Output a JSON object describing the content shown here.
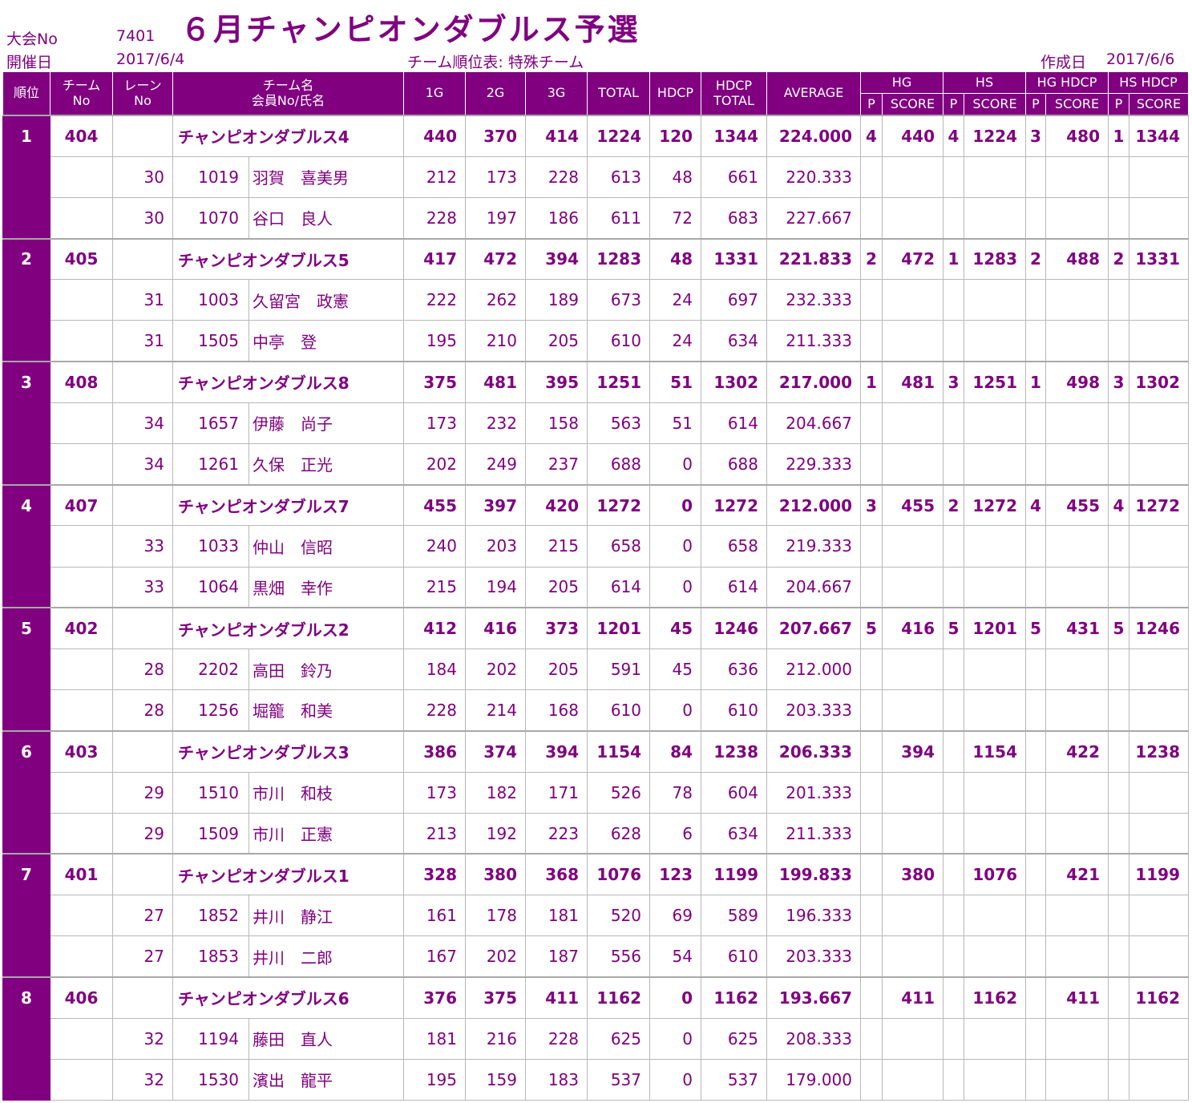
{
  "header": {
    "tournament_no_label": "大会No",
    "tournament_no": "7401",
    "title": "６月チャンピオンダブルス予選",
    "date_label": "開催日",
    "date": "2017/6/4",
    "subtitle": "チーム順位表: 特殊チーム",
    "created_label": "作成日",
    "created_date": "2017/6/6"
  },
  "columns": {
    "rank": "順位",
    "team_no_1": "チーム",
    "team_no_2": "No",
    "lane_1": "レーン",
    "lane_2": "No",
    "name_1": "チーム名",
    "name_2": "会員No/氏名",
    "g1": "1G",
    "g2": "2G",
    "g3": "3G",
    "total": "TOTAL",
    "hdcp": "HDCP",
    "hdcp_total_1": "HDCP",
    "hdcp_total_2": "TOTAL",
    "average": "AVERAGE",
    "hg": "HG",
    "hs": "HS",
    "hg_hdcp": "HG HDCP",
    "hs_hdcp": "HS HDCP",
    "p": "P",
    "score": "SCORE"
  },
  "teams": [
    {
      "rank": "1",
      "team_no": "404",
      "name": "チャンピオンダブルス4",
      "g1": "440",
      "g2": "370",
      "g3": "414",
      "total": "1224",
      "hdcp": "120",
      "hdcp_total": "1344",
      "average": "224.000",
      "hg_p": "4",
      "hg_score": "440",
      "hs_p": "4",
      "hs_score": "1224",
      "hgh_p": "3",
      "hgh_score": "480",
      "hsh_p": "1",
      "hsh_score": "1344",
      "members": [
        {
          "lane": "30",
          "member_no": "1019",
          "name": "羽賀　喜美男",
          "g1": "212",
          "g2": "173",
          "g3": "228",
          "total": "613",
          "hdcp": "48",
          "hdcp_total": "661",
          "average": "220.333"
        },
        {
          "lane": "30",
          "member_no": "1070",
          "name": "谷口　良人",
          "g1": "228",
          "g2": "197",
          "g3": "186",
          "total": "611",
          "hdcp": "72",
          "hdcp_total": "683",
          "average": "227.667"
        }
      ]
    },
    {
      "rank": "2",
      "team_no": "405",
      "name": "チャンピオンダブルス5",
      "g1": "417",
      "g2": "472",
      "g3": "394",
      "total": "1283",
      "hdcp": "48",
      "hdcp_total": "1331",
      "average": "221.833",
      "hg_p": "2",
      "hg_score": "472",
      "hs_p": "1",
      "hs_score": "1283",
      "hgh_p": "2",
      "hgh_score": "488",
      "hsh_p": "2",
      "hsh_score": "1331",
      "members": [
        {
          "lane": "31",
          "member_no": "1003",
          "name": "久留宮　政憲",
          "g1": "222",
          "g2": "262",
          "g3": "189",
          "total": "673",
          "hdcp": "24",
          "hdcp_total": "697",
          "average": "232.333"
        },
        {
          "lane": "31",
          "member_no": "1505",
          "name": "中亭　登",
          "g1": "195",
          "g2": "210",
          "g3": "205",
          "total": "610",
          "hdcp": "24",
          "hdcp_total": "634",
          "average": "211.333"
        }
      ]
    },
    {
      "rank": "3",
      "team_no": "408",
      "name": "チャンピオンダブルス8",
      "g1": "375",
      "g2": "481",
      "g3": "395",
      "total": "1251",
      "hdcp": "51",
      "hdcp_total": "1302",
      "average": "217.000",
      "hg_p": "1",
      "hg_score": "481",
      "hs_p": "3",
      "hs_score": "1251",
      "hgh_p": "1",
      "hgh_score": "498",
      "hsh_p": "3",
      "hsh_score": "1302",
      "members": [
        {
          "lane": "34",
          "member_no": "1657",
          "name": "伊藤　尚子",
          "g1": "173",
          "g2": "232",
          "g3": "158",
          "total": "563",
          "hdcp": "51",
          "hdcp_total": "614",
          "average": "204.667"
        },
        {
          "lane": "34",
          "member_no": "1261",
          "name": "久保　正光",
          "g1": "202",
          "g2": "249",
          "g3": "237",
          "total": "688",
          "hdcp": "0",
          "hdcp_total": "688",
          "average": "229.333"
        }
      ]
    },
    {
      "rank": "4",
      "team_no": "407",
      "name": "チャンピオンダブルス7",
      "g1": "455",
      "g2": "397",
      "g3": "420",
      "total": "1272",
      "hdcp": "0",
      "hdcp_total": "1272",
      "average": "212.000",
      "hg_p": "3",
      "hg_score": "455",
      "hs_p": "2",
      "hs_score": "1272",
      "hgh_p": "4",
      "hgh_score": "455",
      "hsh_p": "4",
      "hsh_score": "1272",
      "members": [
        {
          "lane": "33",
          "member_no": "1033",
          "name": "仲山　信昭",
          "g1": "240",
          "g2": "203",
          "g3": "215",
          "total": "658",
          "hdcp": "0",
          "hdcp_total": "658",
          "average": "219.333"
        },
        {
          "lane": "33",
          "member_no": "1064",
          "name": "黒畑　幸作",
          "g1": "215",
          "g2": "194",
          "g3": "205",
          "total": "614",
          "hdcp": "0",
          "hdcp_total": "614",
          "average": "204.667"
        }
      ]
    },
    {
      "rank": "5",
      "team_no": "402",
      "name": "チャンピオンダブルス2",
      "g1": "412",
      "g2": "416",
      "g3": "373",
      "total": "1201",
      "hdcp": "45",
      "hdcp_total": "1246",
      "average": "207.667",
      "hg_p": "5",
      "hg_score": "416",
      "hs_p": "5",
      "hs_score": "1201",
      "hgh_p": "5",
      "hgh_score": "431",
      "hsh_p": "5",
      "hsh_score": "1246",
      "members": [
        {
          "lane": "28",
          "member_no": "2202",
          "name": "高田　鈴乃",
          "g1": "184",
          "g2": "202",
          "g3": "205",
          "total": "591",
          "hdcp": "45",
          "hdcp_total": "636",
          "average": "212.000"
        },
        {
          "lane": "28",
          "member_no": "1256",
          "name": "堀籠　和美",
          "g1": "228",
          "g2": "214",
          "g3": "168",
          "total": "610",
          "hdcp": "0",
          "hdcp_total": "610",
          "average": "203.333"
        }
      ]
    },
    {
      "rank": "6",
      "team_no": "403",
      "name": "チャンピオンダブルス3",
      "g1": "386",
      "g2": "374",
      "g3": "394",
      "total": "1154",
      "hdcp": "84",
      "hdcp_total": "1238",
      "average": "206.333",
      "hg_p": "",
      "hg_score": "394",
      "hs_p": "",
      "hs_score": "1154",
      "hgh_p": "",
      "hgh_score": "422",
      "hsh_p": "",
      "hsh_score": "1238",
      "members": [
        {
          "lane": "29",
          "member_no": "1510",
          "name": "市川　和枝",
          "g1": "173",
          "g2": "182",
          "g3": "171",
          "total": "526",
          "hdcp": "78",
          "hdcp_total": "604",
          "average": "201.333"
        },
        {
          "lane": "29",
          "member_no": "1509",
          "name": "市川　正憲",
          "g1": "213",
          "g2": "192",
          "g3": "223",
          "total": "628",
          "hdcp": "6",
          "hdcp_total": "634",
          "average": "211.333"
        }
      ]
    },
    {
      "rank": "7",
      "team_no": "401",
      "name": "チャンピオンダブルス1",
      "g1": "328",
      "g2": "380",
      "g3": "368",
      "total": "1076",
      "hdcp": "123",
      "hdcp_total": "1199",
      "average": "199.833",
      "hg_p": "",
      "hg_score": "380",
      "hs_p": "",
      "hs_score": "1076",
      "hgh_p": "",
      "hgh_score": "421",
      "hsh_p": "",
      "hsh_score": "1199",
      "members": [
        {
          "lane": "27",
          "member_no": "1852",
          "name": "井川　静江",
          "g1": "161",
          "g2": "178",
          "g3": "181",
          "total": "520",
          "hdcp": "69",
          "hdcp_total": "589",
          "average": "196.333"
        },
        {
          "lane": "27",
          "member_no": "1853",
          "name": "井川　二郎",
          "g1": "167",
          "g2": "202",
          "g3": "187",
          "total": "556",
          "hdcp": "54",
          "hdcp_total": "610",
          "average": "203.333"
        }
      ]
    },
    {
      "rank": "8",
      "team_no": "406",
      "name": "チャンピオンダブルス6",
      "g1": "376",
      "g2": "375",
      "g3": "411",
      "total": "1162",
      "hdcp": "0",
      "hdcp_total": "1162",
      "average": "193.667",
      "hg_p": "",
      "hg_score": "411",
      "hs_p": "",
      "hs_score": "1162",
      "hgh_p": "",
      "hgh_score": "411",
      "hsh_p": "",
      "hsh_score": "1162",
      "members": [
        {
          "lane": "32",
          "member_no": "1194",
          "name": "藤田　直人",
          "g1": "181",
          "g2": "216",
          "g3": "228",
          "total": "625",
          "hdcp": "0",
          "hdcp_total": "625",
          "average": "208.333"
        },
        {
          "lane": "32",
          "member_no": "1530",
          "name": "濱出　龍平",
          "g1": "195",
          "g2": "159",
          "g3": "183",
          "total": "537",
          "hdcp": "0",
          "hdcp_total": "537",
          "average": "179.000"
        }
      ]
    }
  ],
  "colors": {
    "accent": "#800080",
    "grid": "#b8b8b8"
  }
}
